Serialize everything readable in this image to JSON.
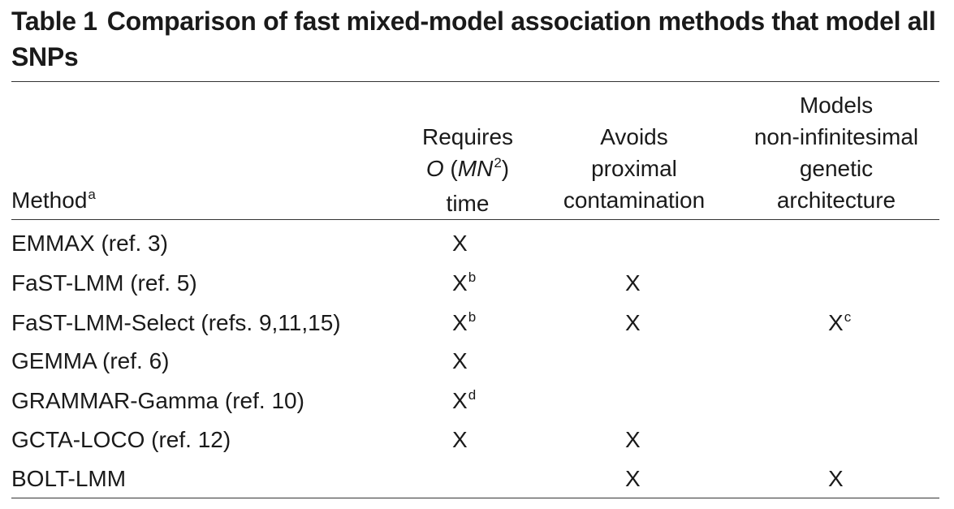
{
  "title": {
    "label": "Table 1",
    "text": "Comparison of fast mixed-model association methods that model all SNPs"
  },
  "headers": {
    "method": "Method",
    "method_note": "a",
    "requires_line1": "Requires",
    "requires_o": "O",
    "requires_paren_open": " (",
    "requires_mn": "MN",
    "requires_sup": "2",
    "requires_paren_close": ")",
    "requires_line3": "time",
    "avoids_line1": "Avoids",
    "avoids_line2": "proximal",
    "avoids_line3": "contamination",
    "models_line1": "Models",
    "models_line2": "non-infinitesimal",
    "models_line3": "genetic",
    "models_line4": "architecture"
  },
  "rows": [
    {
      "method": "EMMAX (ref. 3)",
      "requires": "X",
      "requires_note": "",
      "avoids": "",
      "models": "",
      "models_note": ""
    },
    {
      "method": "FaST-LMM (ref. 5)",
      "requires": "X",
      "requires_note": "b",
      "avoids": "X",
      "models": "",
      "models_note": ""
    },
    {
      "method": "FaST-LMM-Select (refs. 9,11,15)",
      "requires": "X",
      "requires_note": "b",
      "avoids": "X",
      "models": "X",
      "models_note": "c"
    },
    {
      "method": "GEMMA (ref. 6)",
      "requires": "X",
      "requires_note": "",
      "avoids": "",
      "models": "",
      "models_note": ""
    },
    {
      "method": "GRAMMAR-Gamma (ref. 10)",
      "requires": "X",
      "requires_note": "d",
      "avoids": "",
      "models": "",
      "models_note": ""
    },
    {
      "method": "GCTA-LOCO (ref. 12)",
      "requires": "X",
      "requires_note": "",
      "avoids": "X",
      "models": "",
      "models_note": ""
    },
    {
      "method": "BOLT-LMM",
      "requires": "",
      "requires_note": "",
      "avoids": "X",
      "models": "X",
      "models_note": ""
    }
  ]
}
